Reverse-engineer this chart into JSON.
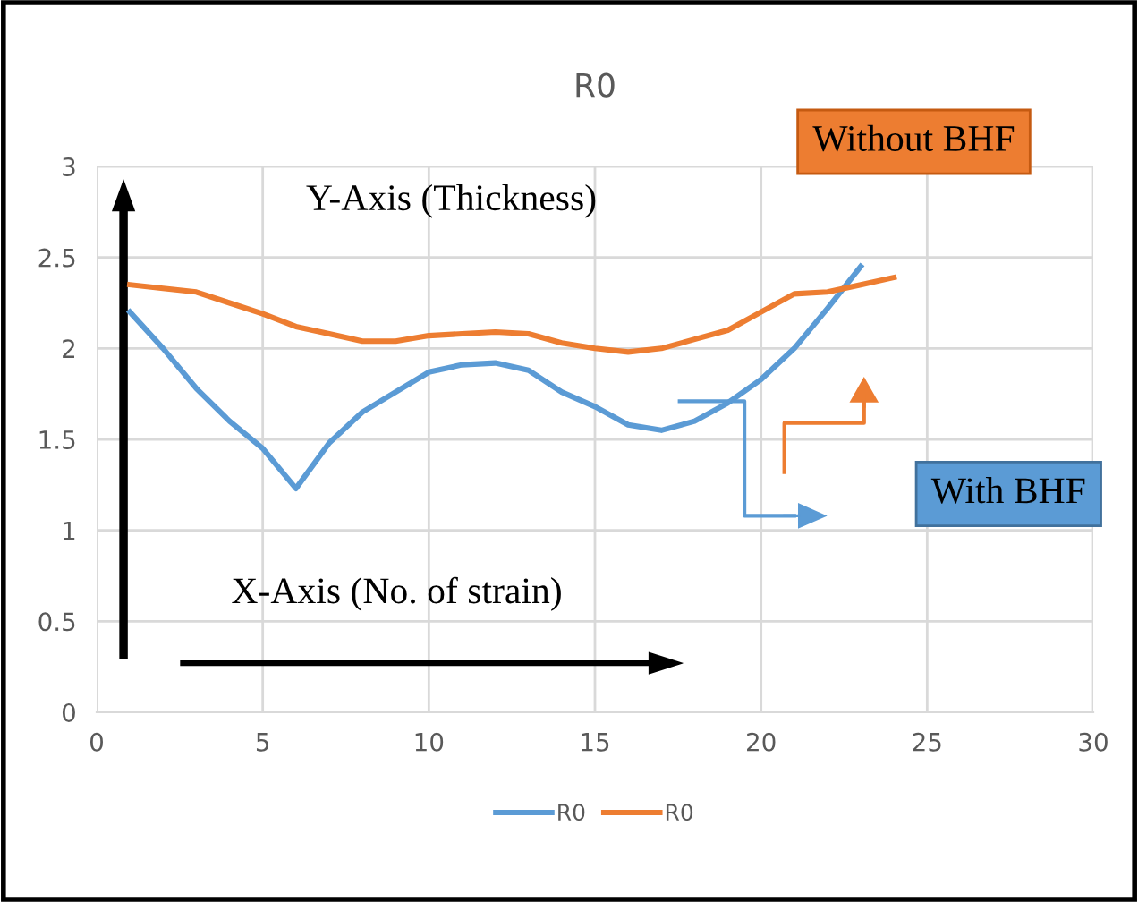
{
  "chart_data": {
    "type": "line",
    "title": "R0",
    "x": [
      1,
      2,
      3,
      4,
      5,
      6,
      7,
      8,
      9,
      10,
      11,
      12,
      13,
      14,
      15,
      16,
      17,
      18,
      19,
      20,
      21,
      22,
      23,
      24
    ],
    "series": [
      {
        "name": "R0",
        "color": "#5b9bd5",
        "values": [
          2.2,
          2.0,
          1.78,
          1.6,
          1.45,
          1.23,
          1.48,
          1.65,
          1.76,
          1.87,
          1.91,
          1.92,
          1.88,
          1.76,
          1.68,
          1.58,
          1.55,
          1.6,
          1.7,
          1.83,
          2.0,
          2.22,
          2.45,
          null
        ]
      },
      {
        "name": "R0",
        "color": "#ed7d31",
        "values": [
          2.35,
          2.33,
          2.31,
          2.25,
          2.19,
          2.12,
          2.08,
          2.04,
          2.04,
          2.07,
          2.08,
          2.09,
          2.08,
          2.03,
          2.0,
          1.98,
          2.0,
          2.05,
          2.1,
          2.2,
          2.3,
          2.31,
          2.35,
          2.39
        ]
      }
    ],
    "xlim": [
      0,
      30
    ],
    "xticks": [
      0,
      5,
      10,
      15,
      20,
      25,
      30
    ],
    "ylim": [
      0,
      3
    ],
    "yticks": [
      0,
      0.5,
      1,
      1.5,
      2,
      2.5,
      3
    ],
    "grid": true,
    "legend": "bottom",
    "marker": "none",
    "line_style": "solid",
    "annotations": [
      "Y-Axis (Thickness)",
      "X-Axis (No. of strain)",
      "Without BHF",
      "With BHF"
    ]
  }
}
